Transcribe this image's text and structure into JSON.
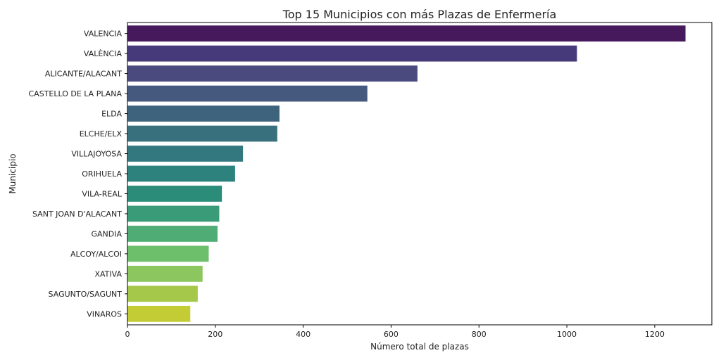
{
  "chart_data": {
    "type": "bar",
    "orientation": "horizontal",
    "title": "Top 15 Municipios con más Plazas de Enfermería",
    "xlabel": "Número total de plazas",
    "ylabel": "Municipio",
    "xlim": [
      0,
      1330
    ],
    "xticks": [
      0,
      200,
      400,
      600,
      800,
      1000,
      1200
    ],
    "grid": false,
    "legend": "none",
    "categories": [
      "VALENCIA",
      "VALÈNCIA",
      "ALICANTE/ALACANT",
      "CASTELLO DE LA PLANA",
      "ELDA",
      "ELCHE/ELX",
      "VILLAJOYOSA",
      "ORIHUELA",
      "VILA-REAL",
      "SANT JOAN D'ALACANT",
      "GANDIA",
      "ALCOY/ALCOI",
      "XATIVA",
      "SAGUNTO/SAGUNT",
      "VINAROS"
    ],
    "values": [
      1270,
      1023,
      660,
      546,
      346,
      341,
      263,
      245,
      215,
      209,
      205,
      185,
      171,
      160,
      143
    ],
    "colors": [
      "#46195c",
      "#463a7a",
      "#4a4a7e",
      "#45597e",
      "#3e647d",
      "#39707e",
      "#34787f",
      "#2d827e",
      "#2b8c7a",
      "#3a9b78",
      "#4fac74",
      "#6dbf6c",
      "#8bc65e",
      "#a5c84a",
      "#c4cc35"
    ]
  }
}
